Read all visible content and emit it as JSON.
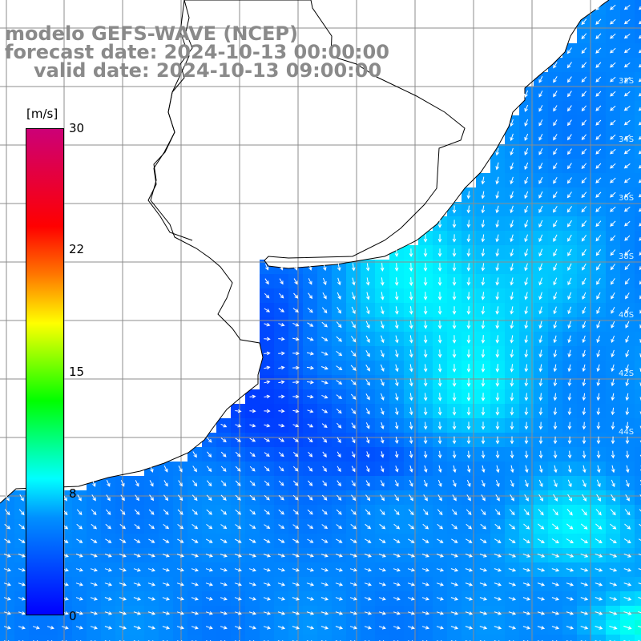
{
  "header": {
    "title": "modelo GEFS-WAVE (NCEP)",
    "forecast_line": "forecast date: 2024-10-13 00:00:00",
    "valid_line": "valid date: 2024-10-13 09:00:00"
  },
  "colorbar": {
    "unit": "[m/s]",
    "tick_labels": [
      "30",
      "22",
      "15",
      "8",
      "0"
    ],
    "range": [
      0,
      30
    ]
  },
  "colors": {
    "land": "#ffffff",
    "grid_line": "#8c8c8c",
    "coastline": "#000000",
    "arrow": "#ffffff",
    "text": "#8a8a8a"
  },
  "map": {
    "parameter": "wind speed and direction",
    "right_edge_latitude_labels": [
      "32S",
      "34S",
      "36S",
      "38S",
      "40S",
      "42S",
      "44S"
    ]
  }
}
